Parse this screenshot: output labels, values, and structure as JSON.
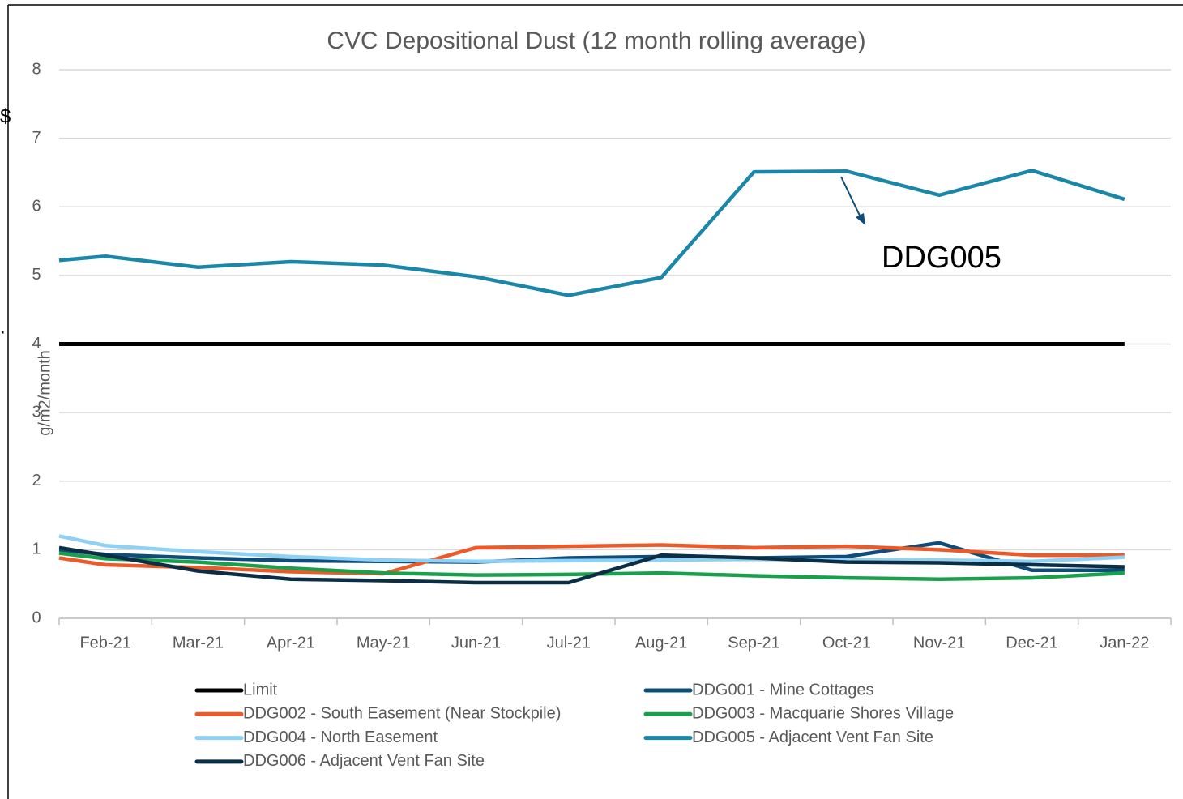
{
  "chart_data": {
    "type": "line",
    "title": "CVC Depositional Dust (12 month rolling average)",
    "y_axis_label": "g/m2/month",
    "annotation": "DDG005",
    "stray_marks": [
      "$",
      "."
    ],
    "categories": [
      null,
      "Feb-21",
      "Mar-21",
      "Apr-21",
      "May-21",
      "Jun-21",
      "Jul-21",
      "Aug-21",
      "Sep-21",
      "Oct-21",
      "Nov-21",
      "Dec-21",
      "Jan-22"
    ],
    "ylim": [
      0,
      8
    ],
    "yticks": [
      0,
      1,
      2,
      3,
      4,
      5,
      6,
      7,
      8
    ],
    "grid": true,
    "series": [
      {
        "name": "Limit",
        "color": "#000000",
        "values": [
          4,
          4,
          4,
          4,
          4,
          4,
          4,
          4,
          4,
          4,
          4,
          4,
          4
        ]
      },
      {
        "name": "DDG001 - Mine Cottages",
        "color": "#0e4c7a",
        "values": [
          1.0,
          0.93,
          0.88,
          0.84,
          0.83,
          0.82,
          0.88,
          0.9,
          0.88,
          0.9,
          1.1,
          0.7,
          0.7
        ]
      },
      {
        "name": "DDG002 - South Easement (Near Stockpile)",
        "color": "#ed5a2a",
        "values": [
          0.88,
          0.78,
          0.74,
          0.68,
          0.65,
          1.03,
          1.05,
          1.07,
          1.03,
          1.05,
          1.0,
          0.92,
          0.92
        ]
      },
      {
        "name": "DDG003 - Macquarie Shores Village",
        "color": "#1aa04c",
        "values": [
          0.95,
          0.87,
          0.82,
          0.73,
          0.66,
          0.63,
          0.64,
          0.66,
          0.62,
          0.59,
          0.57,
          0.59,
          0.66
        ]
      },
      {
        "name": "DDG004 - North Easement",
        "color": "#8fd1f5",
        "values": [
          1.2,
          1.06,
          0.97,
          0.9,
          0.85,
          0.83,
          0.84,
          0.85,
          0.86,
          0.85,
          0.85,
          0.83,
          0.89
        ]
      },
      {
        "name": "DDG005 - Adjacent Vent Fan Site",
        "color": "#1a86a8",
        "values": [
          5.22,
          5.28,
          5.12,
          5.2,
          5.15,
          4.98,
          4.71,
          4.97,
          6.51,
          6.52,
          6.17,
          6.53,
          6.11
        ]
      },
      {
        "name": "DDG006 - Adjacent Vent Fan Site",
        "color": "#0b2e45",
        "values": [
          1.03,
          0.92,
          0.69,
          0.57,
          0.55,
          0.52,
          0.52,
          0.92,
          0.88,
          0.82,
          0.81,
          0.78,
          0.75
        ]
      }
    ]
  }
}
